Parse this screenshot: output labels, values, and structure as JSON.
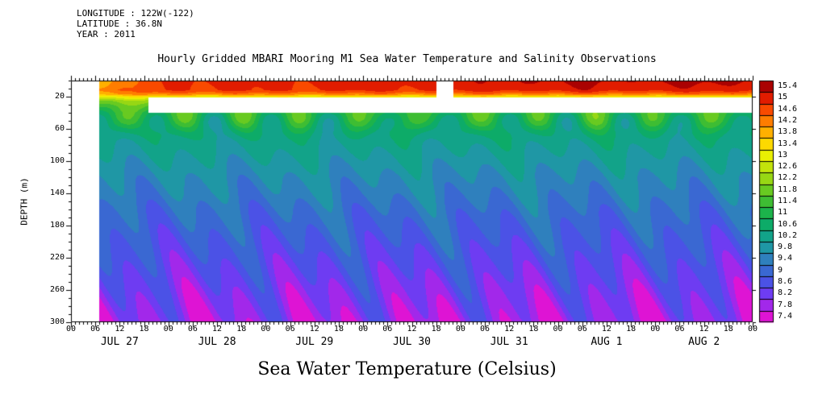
{
  "header": {
    "longitude_line": "LONGITUDE : 122W(-122)",
    "latitude_line": "LATITUDE : 36.8N",
    "year_line": "YEAR : 2011"
  },
  "title": "Hourly Gridded MBARI Mooring M1 Sea Water Temperature and Salinity Observations",
  "footer": "Sea Water Temperature (Celsius)",
  "chart_data": {
    "type": "heatmap",
    "title": "Hourly Gridded MBARI Mooring M1 Sea Water Temperature and Salinity Observations",
    "xlabel_days": [
      "JUL 27",
      "JUL 28",
      "JUL 29",
      "JUL 30",
      "JUL 31",
      "AUG  1",
      "AUG  2"
    ],
    "x_tick_labels": [
      "00",
      "06",
      "12",
      "18",
      "00",
      "06",
      "12",
      "18",
      "00",
      "06",
      "12",
      "18",
      "00",
      "06",
      "12",
      "18",
      "00",
      "06",
      "12",
      "18",
      "00",
      "06",
      "12",
      "18",
      "00",
      "06",
      "12",
      "18",
      "00"
    ],
    "x_range_hours": [
      0,
      168
    ],
    "ylabel": "DEPTH (m)",
    "y_tick_labels": [
      "20",
      "60",
      "100",
      "140",
      "180",
      "220",
      "260",
      "300"
    ],
    "y_range_m": [
      0,
      300
    ],
    "colorbar_tick_labels": [
      "15.4",
      "15",
      "14.6",
      "14.2",
      "13.8",
      "13.4",
      "13",
      "12.6",
      "12.2",
      "11.8",
      "11.4",
      "11",
      "10.6",
      "10.2",
      "9.8",
      "9.4",
      "9",
      "8.6",
      "8.2",
      "7.8",
      "7.4"
    ],
    "palette_bottom_to_top": [
      "#de14d4",
      "#a228ea",
      "#6e3cf2",
      "#4b52e6",
      "#3a68d2",
      "#2f80bd",
      "#1f97a5",
      "#12a389",
      "#0dab68",
      "#1cb34b",
      "#3ebd33",
      "#68ca21",
      "#97d714",
      "#c3e30b",
      "#e9ef03",
      "#fdd900",
      "#ffb000",
      "#ff7d00",
      "#f94a00",
      "#e11c00",
      "#aa0202"
    ],
    "level_min": 7.4,
    "level_step": 0.4,
    "data_start_hour": 7,
    "missing_regions": [
      {
        "hours": [
          19,
          168
        ],
        "depth_m": [
          21,
          40
        ]
      },
      {
        "hours": [
          90,
          94.3
        ],
        "depth_m": [
          0,
          40
        ]
      }
    ],
    "surface_reference": 15.0,
    "surface_series": [
      [
        7,
        13.7
      ],
      [
        11,
        14.05
      ],
      [
        15,
        13.85
      ],
      [
        18,
        14.6
      ],
      [
        24,
        14.9
      ],
      [
        36,
        15.0
      ],
      [
        48,
        14.85
      ],
      [
        60,
        15.0
      ],
      [
        72,
        14.95
      ],
      [
        84,
        15.1
      ],
      [
        90,
        15.1
      ],
      [
        96,
        15.0
      ],
      [
        104,
        15.15
      ],
      [
        112,
        15.3
      ],
      [
        120,
        15.2
      ],
      [
        128,
        15.35
      ],
      [
        136,
        15.2
      ],
      [
        144,
        15.3
      ],
      [
        152,
        15.25
      ],
      [
        160,
        15.35
      ],
      [
        168,
        15.3
      ]
    ],
    "depth_profile": [
      [
        0,
        15.0
      ],
      [
        12,
        14.85
      ],
      [
        17,
        14.2
      ],
      [
        20,
        13.2
      ],
      [
        25,
        12.2
      ],
      [
        32,
        11.6
      ],
      [
        40,
        11.15
      ],
      [
        50,
        10.85
      ],
      [
        62,
        10.5
      ],
      [
        75,
        10.2
      ],
      [
        90,
        10.0
      ],
      [
        105,
        9.8
      ],
      [
        120,
        9.6
      ],
      [
        140,
        9.4
      ],
      [
        160,
        9.15
      ],
      [
        180,
        8.95
      ],
      [
        200,
        8.75
      ],
      [
        220,
        8.55
      ],
      [
        240,
        8.35
      ],
      [
        260,
        8.15
      ],
      [
        280,
        7.98
      ],
      [
        300,
        7.82
      ]
    ],
    "internal_waves": [
      {
        "period_h": 12.4,
        "phase": 0.15,
        "amp_surface": 0.1,
        "amp_bottom": 0.5,
        "depth_phase_m": 150
      },
      {
        "period_h": 27.0,
        "phase": 0.62,
        "amp_surface": 0.08,
        "amp_bottom": 0.35,
        "depth_phase_m": 260
      },
      {
        "period_h": 14.5,
        "phase": 0.33,
        "bump_amp": 0.8,
        "bump_center_m": 48,
        "bump_sigma_m": 15
      }
    ]
  }
}
